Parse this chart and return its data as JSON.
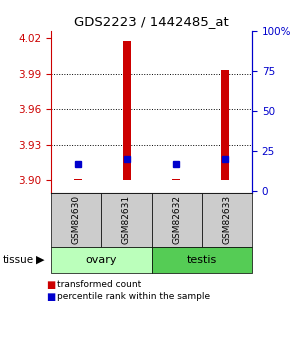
{
  "title": "GDS2223 / 1442485_at",
  "samples": [
    "GSM82630",
    "GSM82631",
    "GSM82632",
    "GSM82633"
  ],
  "red_values": [
    3.901,
    4.018,
    3.901,
    3.993
  ],
  "blue_values": [
    17,
    20,
    17,
    20
  ],
  "ylim_left": [
    3.889,
    4.026
  ],
  "ylim_right": [
    -1.35,
    100
  ],
  "yticks_left": [
    3.9,
    3.93,
    3.96,
    3.99,
    4.02
  ],
  "yticks_right": [
    0,
    25,
    50,
    75,
    100
  ],
  "bar_bottom": 3.9,
  "red_color": "#cc0000",
  "blue_color": "#0000cc",
  "legend_red_label": "transformed count",
  "legend_blue_label": "percentile rank within the sample",
  "sample_box_color": "#cccccc",
  "tissue_ovary_color": "#bbffbb",
  "tissue_testis_color": "#55cc55",
  "dotted_ticks": [
    3.93,
    3.96,
    3.99
  ],
  "xlim": [
    -0.55,
    3.55
  ]
}
